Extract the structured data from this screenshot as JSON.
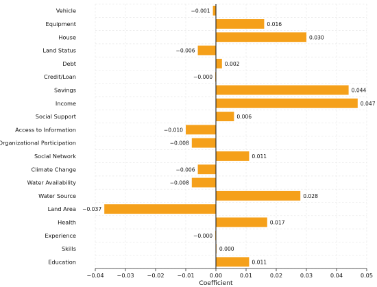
{
  "chart_data": {
    "type": "bar",
    "orientation": "horizontal",
    "categories": [
      "Vehicle",
      "Equipment",
      "House",
      "Land Status",
      "Debt",
      "Credit/Loan",
      "Savings",
      "Income",
      "Social Support",
      "Access to Information",
      "Organizational Participation",
      "Social Network",
      "Climate Change",
      "Water Availability",
      "Water Source",
      "Land Area",
      "Health",
      "Experience",
      "Skills",
      "Education"
    ],
    "values": [
      -0.001,
      0.016,
      0.03,
      -0.006,
      0.002,
      -0.0002,
      0.044,
      0.047,
      0.006,
      -0.01,
      -0.008,
      0.011,
      -0.006,
      -0.008,
      0.028,
      -0.037,
      0.017,
      -0.0002,
      0.0002,
      0.011
    ],
    "value_labels": [
      "−0.001",
      "0.016",
      "0.030",
      "−0.006",
      "0.002",
      "−0.000",
      "0.044",
      "0.047",
      "0.006",
      "−0.010",
      "−0.008",
      "0.011",
      "−0.006",
      "−0.008",
      "0.028",
      "−0.037",
      "0.017",
      "−0.000",
      "0.000",
      "0.011"
    ],
    "xlabel": "Coefficient",
    "ylabel": "",
    "title": "",
    "xlim": [
      -0.04,
      0.05
    ],
    "xticks": [
      -0.04,
      -0.03,
      -0.02,
      -0.01,
      0.0,
      0.01,
      0.02,
      0.03,
      0.04,
      0.05
    ],
    "xtick_labels": [
      "−0.04",
      "−0.03",
      "−0.02",
      "−0.01",
      "0.00",
      "0.01",
      "0.02",
      "0.03",
      "0.04",
      "0.05"
    ],
    "grid": true,
    "bar_color": "#f5a01a",
    "zero_line_color": "#222222"
  }
}
